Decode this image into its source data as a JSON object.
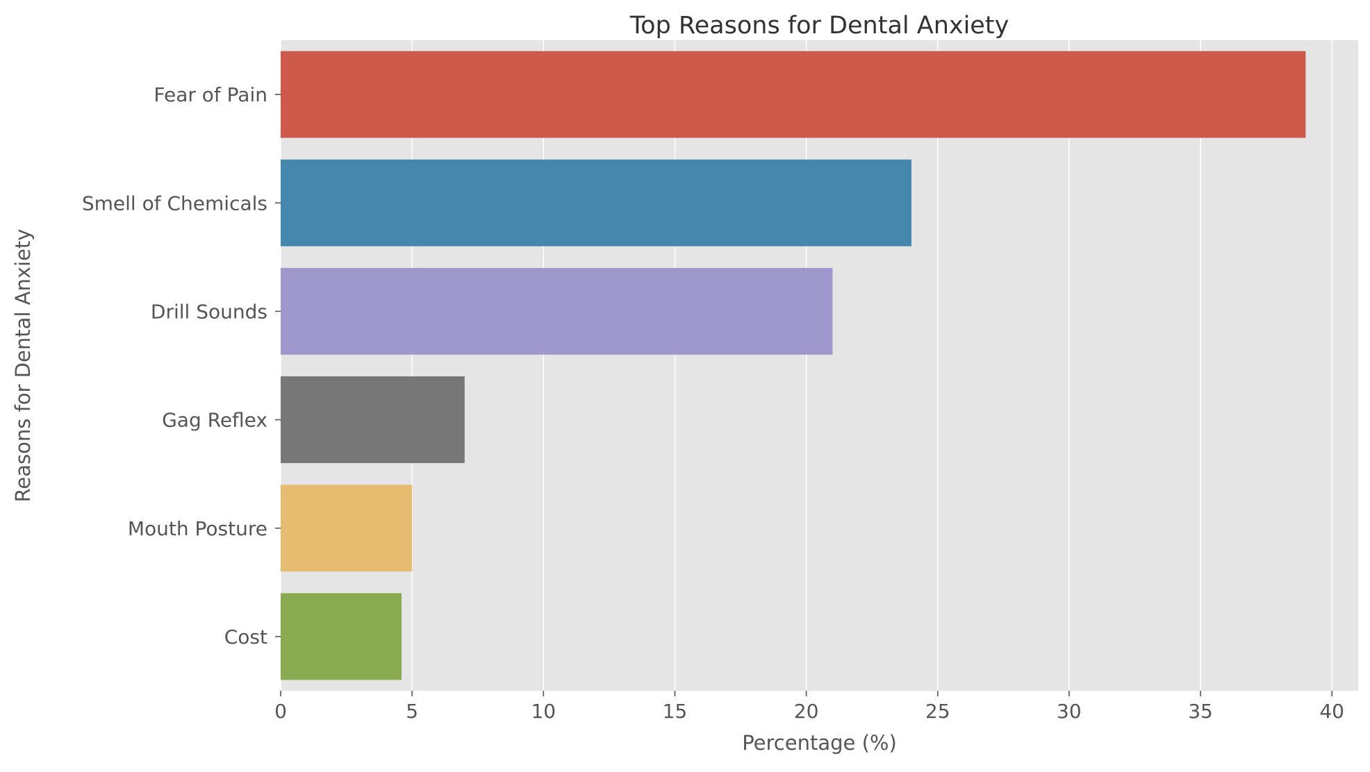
{
  "chart_data": {
    "type": "bar",
    "orientation": "horizontal",
    "title": "Top Reasons for Dental Anxiety",
    "xlabel": "Percentage (%)",
    "ylabel": "Reasons for Dental Anxiety",
    "xlim": [
      0,
      41
    ],
    "x_ticks": [
      0,
      5,
      10,
      15,
      20,
      25,
      30,
      35,
      40
    ],
    "grid": true,
    "legend": "none",
    "categories": [
      "Fear of Pain",
      "Smell of Chemicals",
      "Drill Sounds",
      "Gag Reflex",
      "Mouth Posture",
      "Cost"
    ],
    "values": [
      39,
      24,
      21,
      7,
      5,
      4.6
    ],
    "colors": [
      "#cd5a4a",
      "#4687ad",
      "#9e98cc",
      "#777777",
      "#e6bc71",
      "#89aa51"
    ],
    "style": {
      "plot_background": "#e5e5e5",
      "grid_color": "#ffffff",
      "text_color": "#555555",
      "title_color": "#333333"
    }
  }
}
